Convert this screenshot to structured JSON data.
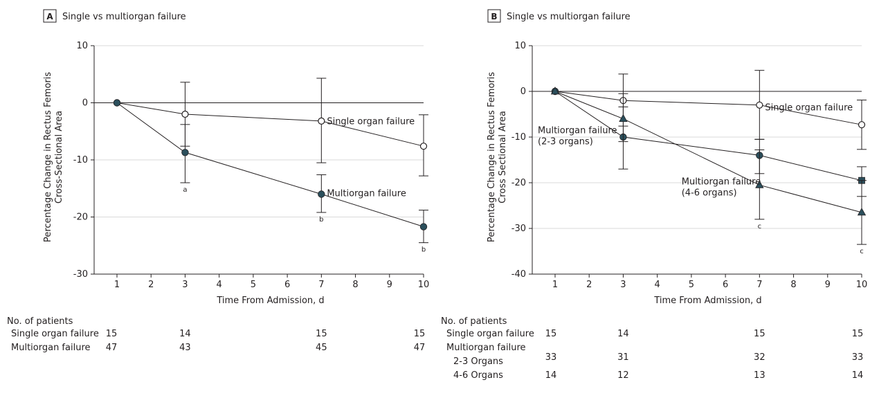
{
  "panels": [
    {
      "id": "A",
      "label": "A",
      "title": "Single vs multiorgan failure",
      "ylabel": "Percentage Change in Rectus Femoris Cross-Sectional Area",
      "ylabel_lines": [
        "Percentage Change in Rectus Femoris",
        "Cross-Sectional Area"
      ],
      "xlabel": "Time From Admission, d",
      "patients_title": "No. of patients",
      "patient_rows": [
        {
          "label": "Single organ failure",
          "days": [
            1,
            3,
            7,
            10
          ],
          "counts": [
            "15",
            "14",
            "15",
            "15"
          ]
        },
        {
          "label": "Multiorgan failure",
          "days": [
            1,
            3,
            7,
            10
          ],
          "counts": [
            "47",
            "43",
            "45",
            "47"
          ]
        }
      ]
    },
    {
      "id": "B",
      "label": "B",
      "title": "Single vs multiorgan failure",
      "ylabel": "Percentage Change in Rectus Femoris Cross Sectional Area",
      "ylabel_lines": [
        "Percentage Change in Rectus Femoris",
        "Cross Sectional Area"
      ],
      "xlabel": "Time From Admission, d",
      "patients_title": "No. of patients",
      "patient_rows": [
        {
          "label": "Single organ failure",
          "days": [
            1,
            3,
            7,
            10
          ],
          "counts": [
            "15",
            "14",
            "15",
            "15"
          ]
        },
        {
          "label": "Multiorgan failure",
          "days": [],
          "counts": []
        },
        {
          "label": "2-3 Organs",
          "days": [
            1,
            3,
            7,
            10
          ],
          "counts": [
            "33",
            "31",
            "32",
            "33"
          ]
        },
        {
          "label": "4-6 Organs",
          "days": [
            1,
            3,
            7,
            10
          ],
          "counts": [
            "14",
            "12",
            "13",
            "14"
          ]
        }
      ]
    }
  ],
  "chart_data": [
    {
      "type": "line",
      "panel": "A",
      "title": "Single vs multiorgan failure",
      "xlabel": "Time From Admission, d",
      "ylabel": "Percentage Change in Rectus Femoris Cross-Sectional Area",
      "xlim": [
        0.5,
        10
      ],
      "ylim": [
        -30,
        10
      ],
      "xticks": [
        1,
        2,
        3,
        4,
        5,
        6,
        7,
        8,
        9,
        10
      ],
      "yticks": [
        10,
        0,
        -10,
        -20,
        -30
      ],
      "grid": true,
      "series": [
        {
          "name": "Single organ failure",
          "marker": "open-circle",
          "x": [
            1,
            3,
            7,
            10
          ],
          "y": [
            0,
            -2,
            -3.2,
            -7.6
          ],
          "err_low": [
            0,
            -7.6,
            -10.5,
            -12.8
          ],
          "err_high": [
            0,
            3.6,
            4.3,
            -2.1
          ],
          "annotations": []
        },
        {
          "name": "Multiorgan failure",
          "marker": "filled-circle",
          "x": [
            1,
            3,
            7,
            10
          ],
          "y": [
            0,
            -8.7,
            -16,
            -21.7
          ],
          "err_low": [
            0,
            -14,
            -19.2,
            -24.5
          ],
          "err_high": [
            0,
            -3.8,
            -12.6,
            -18.8
          ],
          "annotations": [
            "",
            "a",
            "b",
            "b"
          ]
        }
      ]
    },
    {
      "type": "line",
      "panel": "B",
      "title": "Single vs multiorgan failure",
      "xlabel": "Time From Admission, d",
      "ylabel": "Percentage Change in Rectus Femoris Cross Sectional Area",
      "xlim": [
        0.5,
        10
      ],
      "ylim": [
        -40,
        10
      ],
      "xticks": [
        1,
        2,
        3,
        4,
        5,
        6,
        7,
        8,
        9,
        10
      ],
      "yticks": [
        10,
        0,
        -10,
        -20,
        -30,
        -40
      ],
      "grid": true,
      "series": [
        {
          "name": "Single organ failure",
          "marker": "open-circle",
          "x": [
            1,
            3,
            7,
            10
          ],
          "y": [
            0,
            -2,
            -3,
            -7.3
          ],
          "err_low": [
            0,
            -7.6,
            -10.5,
            -12.7
          ],
          "err_high": [
            0,
            3.8,
            4.6,
            -1.9
          ],
          "annotations": []
        },
        {
          "name": "Multiorgan failure (2-3 organs)",
          "marker": "filled-circle",
          "x": [
            1,
            3,
            7,
            10
          ],
          "y": [
            0,
            -10,
            -14,
            -19.5
          ],
          "err_low": [
            0,
            -17,
            -18,
            -23
          ],
          "err_high": [
            0,
            -3.4,
            -10.5,
            -16.5
          ],
          "annotations": []
        },
        {
          "name": "Multiorgan failure (4-6 organs)",
          "marker": "triangle",
          "x": [
            1,
            3,
            7,
            10
          ],
          "y": [
            0,
            -6,
            -20.5,
            -26.5
          ],
          "err_low": [
            0,
            -11,
            -28,
            -33.5
          ],
          "err_high": [
            0,
            -0.5,
            -12.8,
            -19.5
          ],
          "annotations": [
            "",
            "",
            "c",
            "c"
          ]
        }
      ],
      "end_marker": {
        "series": "Multiorgan failure (2-3 organs)",
        "marker": "square"
      }
    }
  ],
  "annotations": {
    "A": [
      {
        "text": "Single organ failure",
        "x": 7,
        "y": -2.2
      },
      {
        "text": "Multiorgan failure",
        "x": 7,
        "y": -14.8
      }
    ],
    "B": [
      {
        "lines": [
          "Single organ failure"
        ],
        "x": 7,
        "y": -2.2
      },
      {
        "lines": [
          "Multiorgan failure",
          "(2-3 organs)"
        ],
        "x": 0.55,
        "y": -7.2
      },
      {
        "lines": [
          "Multiorgan failure",
          "(4-6 organs)"
        ],
        "x": 4.55,
        "y": -18.4
      }
    ]
  },
  "colors": {
    "ink": "#231f20",
    "teal_marker": "#2b4f5c",
    "grid": "#d9d9d9"
  }
}
